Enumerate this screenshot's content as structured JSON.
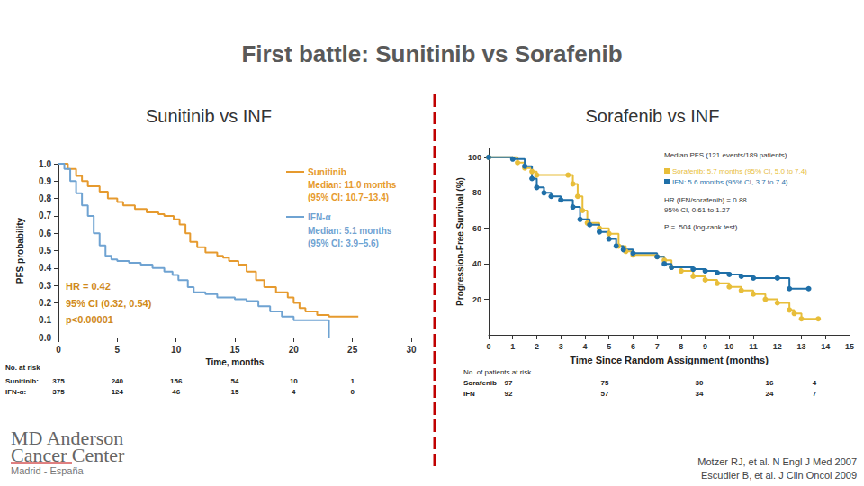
{
  "slide": {
    "title": "First battle: Sunitinib vs Sorafenib",
    "logo": [
      "MD Anderson",
      "Cancer Center",
      "Madrid - España"
    ],
    "references": [
      "Motzer RJ, et al. N Engl J Med 2007",
      "Escudier B, et al. J Clin Oncol 2009"
    ]
  },
  "chart_data": [
    {
      "type": "step",
      "title": "Sunitinib vs INF",
      "x_label": "Time, months",
      "y_label": "PFS probability",
      "xlim": [
        0,
        30
      ],
      "xticks": [
        0,
        5,
        10,
        15,
        20,
        25,
        30
      ],
      "ylim": [
        0,
        1
      ],
      "yticks": [
        {
          "value": 0,
          "label": "0.0"
        },
        0.1,
        0.2,
        0.3,
        0.4,
        0.5,
        0.6,
        0.7,
        0.8,
        0.9,
        {
          "value": 1,
          "label": "1.0"
        }
      ],
      "grid": false,
      "series": [
        {
          "name": "Sunitinib",
          "color": "#E69A2E",
          "marker": "none",
          "line_style": "solid",
          "legend_lines": [
            "Median: 11.0 months",
            "(95% CI: 10.7–13.4)"
          ],
          "x": [
            0,
            0.8,
            1.5,
            2,
            2.5,
            3.5,
            4.2,
            5,
            5.5,
            6.5,
            7.5,
            8.5,
            9,
            9.8,
            10.3,
            10.8,
            11.2,
            11.8,
            12.5,
            13.5,
            14,
            14.5,
            15.3,
            16,
            16.8,
            17.5,
            18.5,
            19.5,
            20,
            20.5,
            21,
            22,
            23,
            25.5
          ],
          "values": [
            1,
            0.97,
            0.93,
            0.9,
            0.87,
            0.84,
            0.8,
            0.78,
            0.76,
            0.74,
            0.72,
            0.71,
            0.7,
            0.68,
            0.65,
            0.6,
            0.55,
            0.52,
            0.49,
            0.47,
            0.46,
            0.44,
            0.42,
            0.38,
            0.33,
            0.29,
            0.26,
            0.23,
            0.2,
            0.17,
            0.15,
            0.13,
            0.12,
            0.12
          ]
        },
        {
          "name": "IFN-α",
          "color": "#6FA3D2",
          "marker": "none",
          "line_style": "solid",
          "legend_lines": [
            "Median: 5.1 months",
            "(95% CI: 3.9–5.6)"
          ],
          "x": [
            0,
            0.5,
            1,
            1.5,
            2,
            2.5,
            3,
            3.5,
            4,
            4.5,
            5,
            6,
            7,
            8,
            9,
            9.7,
            10.2,
            11,
            11.5,
            12.5,
            13.5,
            15,
            16,
            17,
            18,
            19,
            20,
            23,
            23
          ],
          "values": [
            1,
            0.97,
            0.9,
            0.83,
            0.76,
            0.7,
            0.6,
            0.53,
            0.47,
            0.45,
            0.44,
            0.43,
            0.42,
            0.4,
            0.38,
            0.36,
            0.33,
            0.29,
            0.26,
            0.25,
            0.23,
            0.22,
            0.21,
            0.18,
            0.15,
            0.12,
            0.1,
            0.1,
            0
          ]
        }
      ],
      "annotations": [
        "HR = 0.42",
        "95% CI (0.32, 0.54)",
        "p<0.00001"
      ],
      "at_risk": {
        "title": "No. at risk",
        "rows": [
          {
            "name": "Sunitinib:",
            "values": [
              375,
              240,
              156,
              54,
              10,
              1
            ]
          },
          {
            "name": "IFN-α:",
            "values": [
              375,
              124,
              46,
              15,
              4,
              0
            ]
          }
        ]
      }
    },
    {
      "type": "step",
      "title": "Sorafenib vs INF",
      "x_label": "Time Since Random Assignment (months)",
      "y_label": "Progression-Free Survival (%)",
      "xlim": [
        0,
        15
      ],
      "xticks": [
        0,
        1,
        2,
        3,
        4,
        5,
        6,
        7,
        8,
        9,
        10,
        11,
        12,
        13,
        14,
        15
      ],
      "ylim": [
        0,
        105
      ],
      "yticks": [
        20,
        40,
        60,
        80,
        100
      ],
      "grid": false,
      "series": [
        {
          "name": "Sorafenib: 5.7 months (95% CI, 5.0 to 7.4)",
          "color": "#E8BE3A",
          "marker": "circle",
          "line_style": "solid",
          "x": [
            0,
            1.2,
            1.5,
            1.8,
            2,
            3.3,
            3.5,
            3.7,
            3.9,
            4.1,
            4.6,
            5,
            5.4,
            5.7,
            6,
            7,
            7.3,
            7.6,
            8,
            8.5,
            9,
            9.5,
            10,
            10.5,
            11,
            11.5,
            12,
            12.5,
            12.7,
            13,
            13.7
          ],
          "values": [
            100,
            97,
            94,
            92,
            90,
            90,
            85,
            78,
            70,
            63,
            60,
            57,
            50,
            47,
            45,
            44,
            42,
            38,
            36,
            33,
            31,
            29,
            27,
            25,
            23,
            20,
            18,
            14,
            12,
            9,
            9
          ]
        },
        {
          "name": "IFN: 5.6 months (95% CI, 3.7 to 7.4)",
          "color": "#1F6FA8",
          "marker": "circle",
          "line_style": "solid",
          "x": [
            0,
            1,
            1.5,
            1.8,
            2,
            2.3,
            2.6,
            3,
            3.5,
            3.8,
            4.2,
            4.6,
            5,
            5.3,
            5.6,
            6,
            7,
            7.3,
            7.6,
            8.5,
            9,
            9.5,
            10,
            10.5,
            11,
            12,
            12.5,
            13.3
          ],
          "values": [
            100,
            99,
            95,
            88,
            83,
            80,
            78,
            76,
            72,
            65,
            62,
            58,
            54,
            50,
            48,
            46,
            44,
            40,
            38,
            37,
            36,
            35,
            34,
            33,
            32,
            32,
            26,
            26
          ]
        }
      ],
      "annotations": [
        "Median PFS (121 events/189 patients)",
        "HR (IFN/sorafenib) = 0.88",
        "95% CI, 0.61 to 1.27",
        "P = .504 (log-rank test)"
      ],
      "at_risk": {
        "title": "No. of patients at risk",
        "rows": [
          {
            "name": "Sorafenib",
            "values": [
              97,
              75,
              30,
              16,
              4
            ]
          },
          {
            "name": "IFN",
            "values": [
              92,
              57,
              34,
              24,
              7
            ]
          }
        ]
      }
    }
  ]
}
